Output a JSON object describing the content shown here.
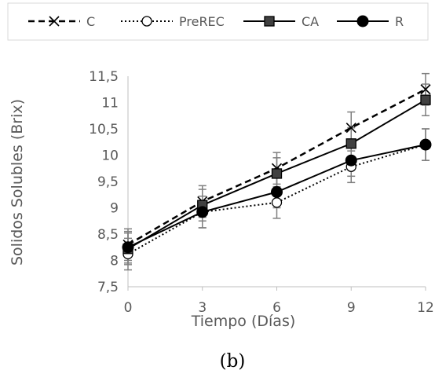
{
  "chart_data": {
    "type": "line",
    "xlabel": "Tiempo (Días)",
    "ylabel": "Solidos Solubles (Brix)",
    "caption": "(b)",
    "x": [
      0,
      3,
      6,
      9,
      12
    ],
    "xtick_labels": [
      "0",
      "3",
      "6",
      "9",
      "12"
    ],
    "ylim": [
      7.5,
      11.5
    ],
    "yticks": [
      7.5,
      8,
      8.5,
      9,
      9.5,
      10,
      10.5,
      11,
      11.5
    ],
    "ytick_labels": [
      "7,5",
      "8",
      "8,5",
      "9",
      "9,5",
      "10",
      "10,5",
      "11",
      "11,5"
    ],
    "grid": false,
    "legend_position": "top",
    "series": [
      {
        "name": "C",
        "values": [
          8.3,
          9.12,
          9.75,
          10.52,
          11.25
        ],
        "errors": [
          0.3,
          0.3,
          0.3,
          0.3,
          0.3
        ],
        "line": "dashed",
        "marker": "x",
        "color": "#000000"
      },
      {
        "name": "PreREC",
        "values": [
          8.12,
          8.92,
          9.1,
          9.78,
          10.2
        ],
        "errors": [
          0.3,
          0.3,
          0.3,
          0.3,
          0.3
        ],
        "line": "dotted",
        "marker": "circle-open",
        "color": "#000000"
      },
      {
        "name": "CA",
        "values": [
          8.22,
          9.05,
          9.65,
          10.22,
          11.05
        ],
        "errors": [
          0.3,
          0.3,
          0.3,
          0.3,
          0.3
        ],
        "line": "solid",
        "marker": "square",
        "color": "#000000"
      },
      {
        "name": "R",
        "values": [
          8.25,
          8.92,
          9.3,
          9.9,
          10.2
        ],
        "errors": [
          0.3,
          0.3,
          0.3,
          0.3,
          0.3
        ],
        "line": "solid",
        "marker": "circle",
        "color": "#000000"
      }
    ]
  }
}
